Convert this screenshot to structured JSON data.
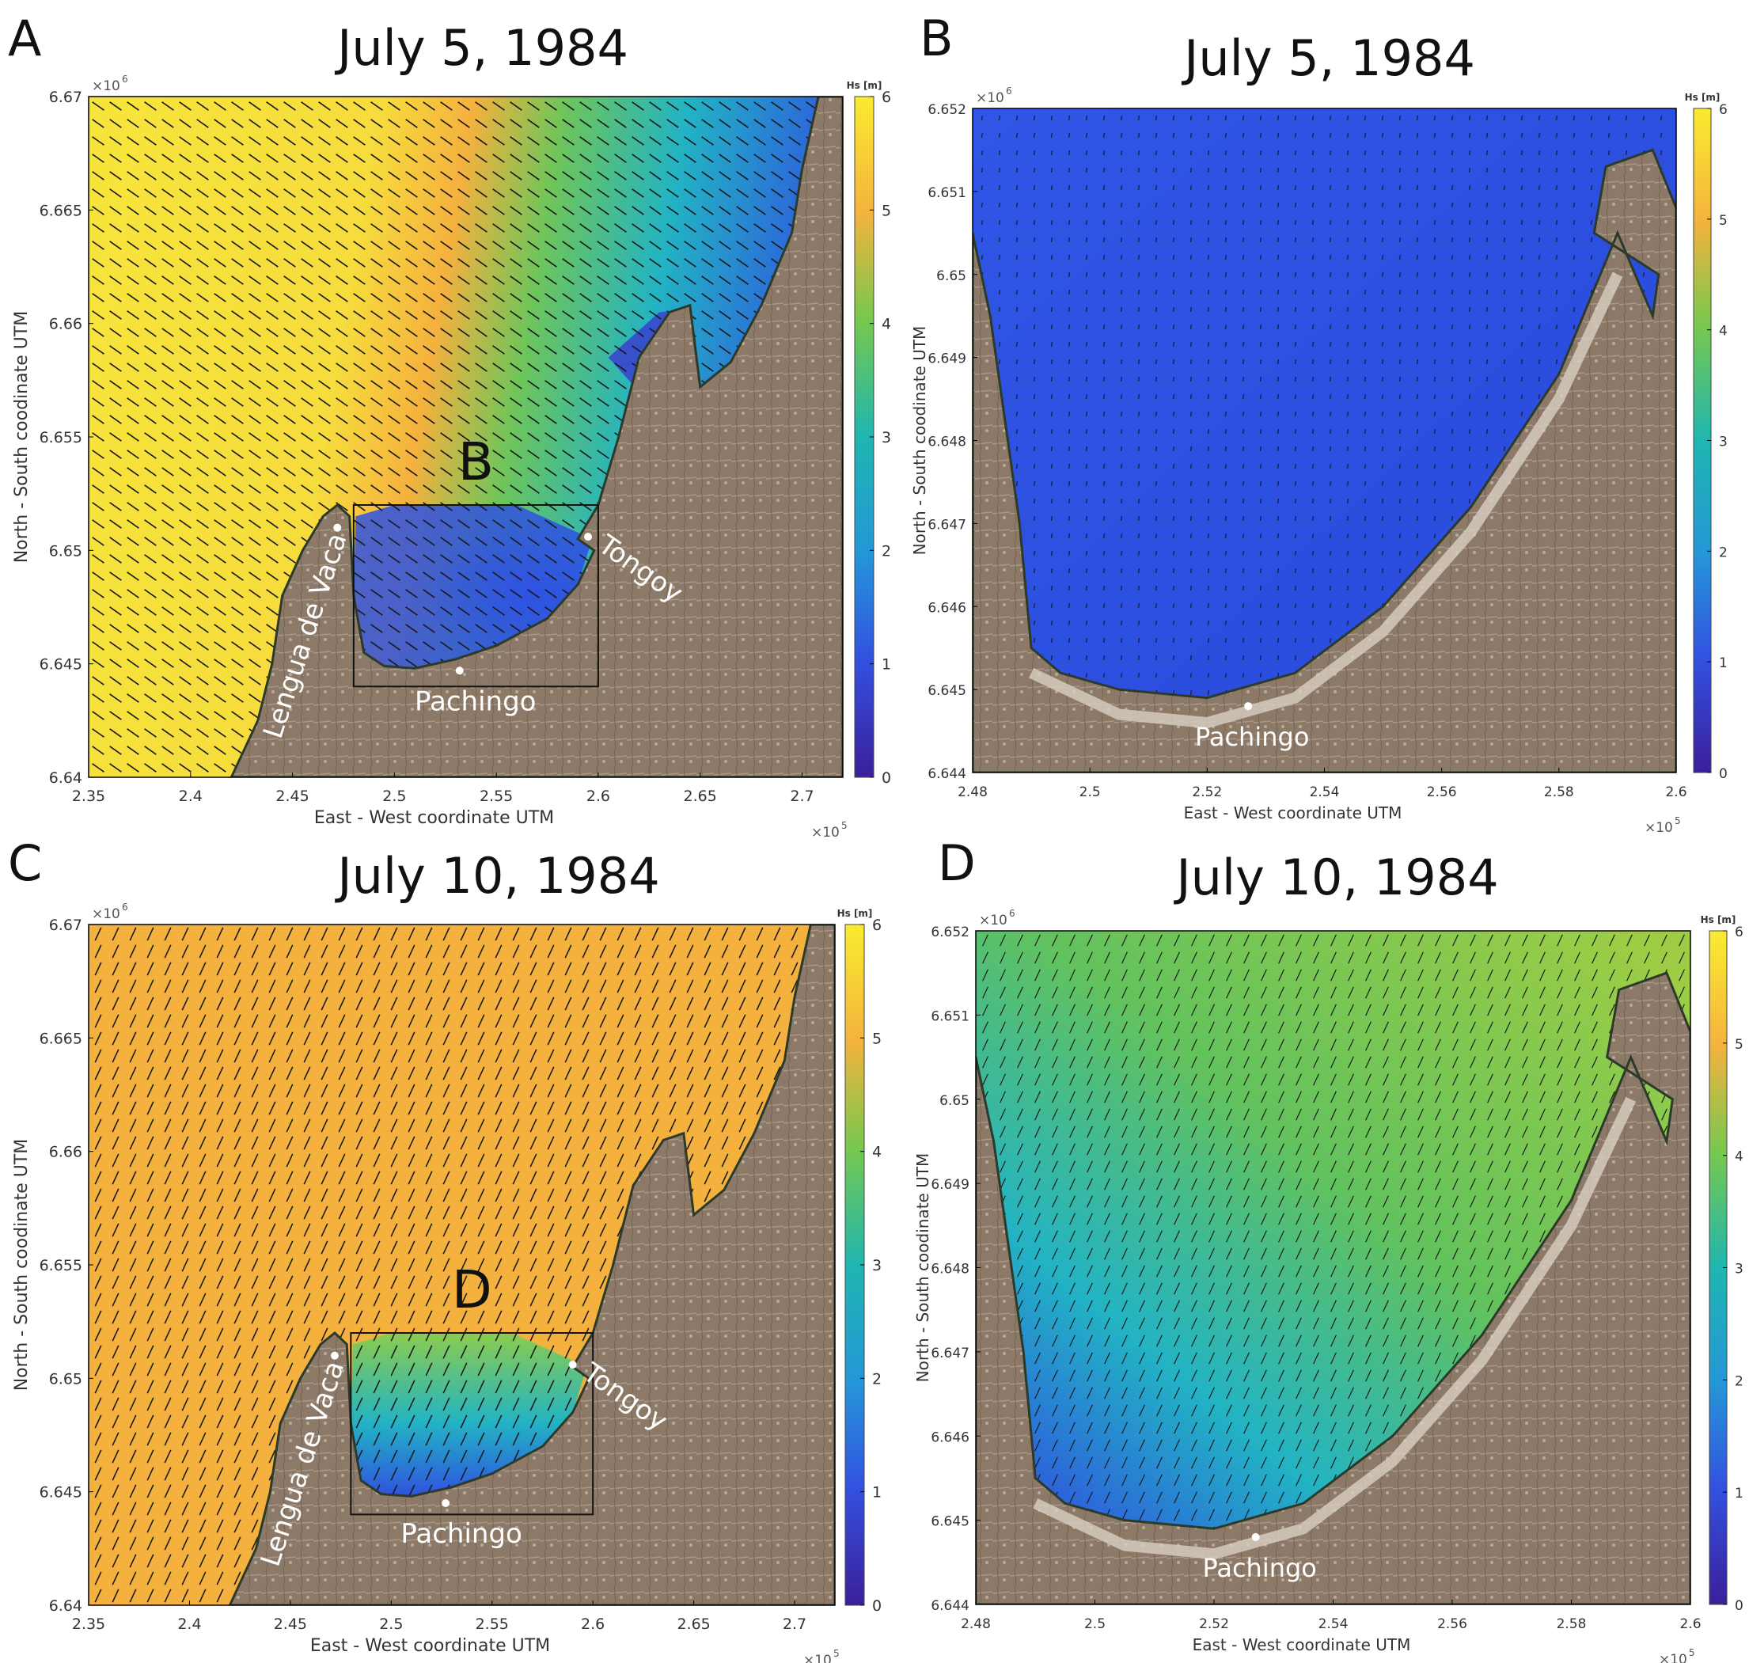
{
  "figure": {
    "colorbar_label": "Hs [m]",
    "colorbar_ticks": [
      "0",
      "1",
      "2",
      "3",
      "4",
      "5",
      "6"
    ],
    "y_exponent_text": "×10",
    "y_exponent_sup": "6",
    "x_exponent_text": "×10",
    "x_exponent_sup": "5"
  },
  "colors": {
    "water_blue": "#2f52e0",
    "water_cyan": "#22b3c4",
    "water_green": "#6ec55a",
    "water_orange": "#f5b13e",
    "water_yellow": "#f7e53b",
    "land": "#8d7968",
    "frame": "#000000"
  },
  "chart_data": [
    {
      "type": "heatmap",
      "panel_letter": "A",
      "title": "July 5, 1984",
      "xlabel": "East - West coordinate UTM",
      "ylabel": "North - South coodinate UTM",
      "xlim": [
        2.35,
        2.72
      ],
      "ylim": [
        6.64,
        6.67
      ],
      "xticks": [
        "2.35",
        "2.4",
        "2.45",
        "2.5",
        "2.55",
        "2.6",
        "2.65",
        "2.7"
      ],
      "yticks": [
        "6.64",
        "6.645",
        "6.65",
        "6.655",
        "6.66",
        "6.665",
        "6.67"
      ],
      "colorbar_range": [
        0,
        6
      ],
      "offshore_hs": 6,
      "bay_hs": 1,
      "wave_direction_deg": 35,
      "inset_box": {
        "label": "B",
        "x": [
          2.48,
          2.6
        ],
        "y": [
          6.644,
          6.652
        ]
      },
      "places": [
        {
          "name": "Lengua de Vaca",
          "x": 2.472,
          "y": 6.651
        },
        {
          "name": "Tongoy",
          "x": 2.595,
          "y": 6.6506
        },
        {
          "name": "Pachingo",
          "x": 2.532,
          "y": 6.6447
        }
      ]
    },
    {
      "type": "heatmap",
      "panel_letter": "B",
      "title": "July 5, 1984",
      "xlabel": "East - West coordinate UTM",
      "ylabel": "North - South coodinate UTM",
      "xlim": [
        2.48,
        2.6
      ],
      "ylim": [
        6.644,
        6.652
      ],
      "xticks": [
        "2.48",
        "2.5",
        "2.52",
        "2.54",
        "2.56",
        "2.58",
        "2.6"
      ],
      "yticks": [
        "6.644",
        "6.645",
        "6.646",
        "6.647",
        "6.648",
        "6.649",
        "6.65",
        "6.651",
        "6.652"
      ],
      "colorbar_range": [
        0,
        6
      ],
      "offshore_hs": 1,
      "bay_hs": 0.8,
      "wave_direction_deg": 100,
      "places": [
        {
          "name": "Pachingo",
          "x": 2.527,
          "y": 6.6448
        }
      ]
    },
    {
      "type": "heatmap",
      "panel_letter": "C",
      "title": "July 10, 1984",
      "xlabel": "East - West coordinate UTM",
      "ylabel": "North - South coodinate UTM",
      "xlim": [
        2.35,
        2.72
      ],
      "ylim": [
        6.64,
        6.67
      ],
      "xticks": [
        "2.35",
        "2.4",
        "2.45",
        "2.5",
        "2.55",
        "2.6",
        "2.65",
        "2.7"
      ],
      "yticks": [
        "6.64",
        "6.645",
        "6.65",
        "6.655",
        "6.66",
        "6.665",
        "6.67"
      ],
      "colorbar_range": [
        0,
        6
      ],
      "offshore_hs": 5,
      "bay_hs": 3,
      "wave_direction_deg": 115,
      "inset_box": {
        "label": "D",
        "x": [
          2.48,
          2.6
        ],
        "y": [
          6.644,
          6.652
        ]
      },
      "places": [
        {
          "name": "Lengua de Vaca",
          "x": 2.472,
          "y": 6.651
        },
        {
          "name": "Tongoy",
          "x": 2.59,
          "y": 6.6506
        },
        {
          "name": "Pachingo",
          "x": 2.527,
          "y": 6.6445
        }
      ]
    },
    {
      "type": "heatmap",
      "panel_letter": "D",
      "title": "July 10, 1984",
      "xlabel": "East - West coordinate UTM",
      "ylabel": "North - South coodinate UTM",
      "xlim": [
        2.48,
        2.6
      ],
      "ylim": [
        6.644,
        6.652
      ],
      "xticks": [
        "2.48",
        "2.5",
        "2.52",
        "2.54",
        "2.56",
        "2.58",
        "2.6"
      ],
      "yticks": [
        "6.644",
        "6.645",
        "6.646",
        "6.647",
        "6.648",
        "6.649",
        "6.65",
        "6.651",
        "6.652"
      ],
      "colorbar_range": [
        0,
        6
      ],
      "offshore_hs": 4.2,
      "bay_hs": 3,
      "wave_direction_deg": 115,
      "places": [
        {
          "name": "Pachingo",
          "x": 2.527,
          "y": 6.6448
        }
      ]
    }
  ]
}
